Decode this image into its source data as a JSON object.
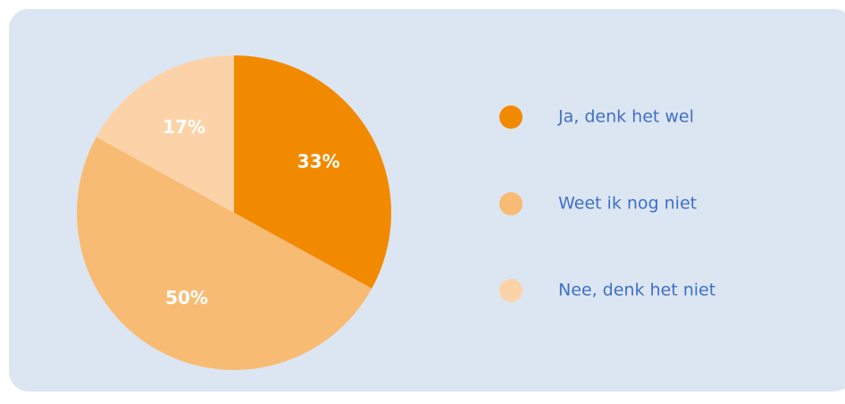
{
  "chart_data": {
    "type": "pie",
    "categories": [
      "Ja, denk het wel",
      "Weet ik nog niet",
      "Nee, denk het niet"
    ],
    "values": [
      33,
      50,
      17
    ],
    "value_labels": [
      "33%",
      "50%",
      "17%"
    ],
    "colors": [
      "#f28a00",
      "#f8bb74",
      "#fcd3a8"
    ],
    "legend": "right"
  }
}
